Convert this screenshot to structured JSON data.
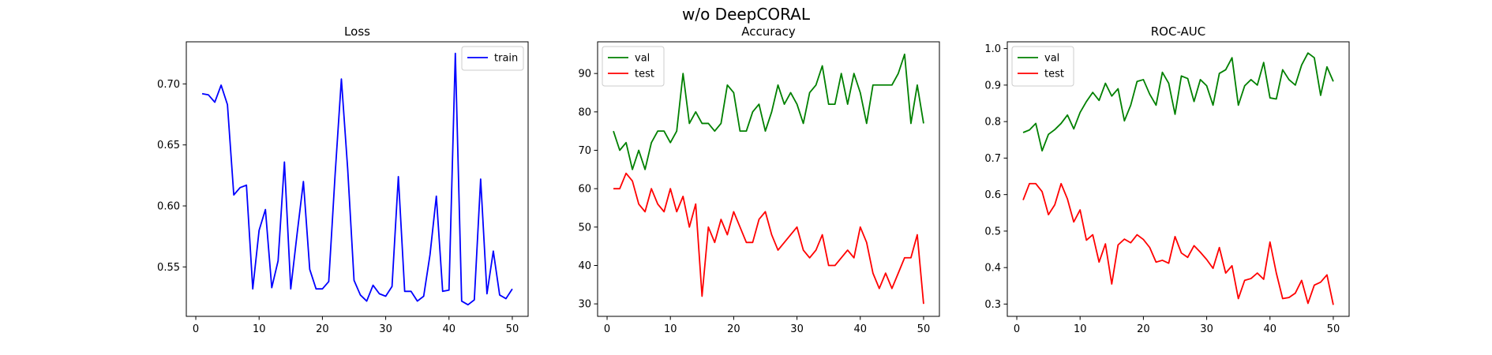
{
  "figure": {
    "suptitle": "w/o DeepCORAL"
  },
  "chart_data": [
    {
      "type": "line",
      "title": "Loss",
      "xlabel": "",
      "ylabel": "",
      "xlim": [
        -1.5,
        52.5
      ],
      "ylim": [
        0.5095,
        0.7345
      ],
      "xticks": [
        0,
        10,
        20,
        30,
        40,
        50
      ],
      "yticks": [
        0.55,
        0.6,
        0.65,
        0.7
      ],
      "ytick_labels": [
        "0.55",
        "0.60",
        "0.65",
        "0.70"
      ],
      "grid": false,
      "legend": "upper-right",
      "x": [
        1,
        2,
        3,
        4,
        5,
        6,
        7,
        8,
        9,
        10,
        11,
        12,
        13,
        14,
        15,
        16,
        17,
        18,
        19,
        20,
        21,
        22,
        23,
        24,
        25,
        26,
        27,
        28,
        29,
        30,
        31,
        32,
        33,
        34,
        35,
        36,
        37,
        38,
        39,
        40,
        41,
        42,
        43,
        44,
        45,
        46,
        47,
        48,
        49,
        50
      ],
      "series": [
        {
          "name": "train",
          "color": "#0000ff",
          "values": [
            0.692,
            0.691,
            0.685,
            0.699,
            0.683,
            0.609,
            0.615,
            0.617,
            0.532,
            0.58,
            0.597,
            0.533,
            0.555,
            0.636,
            0.532,
            0.577,
            0.62,
            0.548,
            0.532,
            0.532,
            0.538,
            0.625,
            0.704,
            0.63,
            0.539,
            0.527,
            0.522,
            0.535,
            0.528,
            0.526,
            0.534,
            0.624,
            0.53,
            0.53,
            0.522,
            0.526,
            0.56,
            0.608,
            0.53,
            0.531,
            0.725,
            0.522,
            0.519,
            0.523,
            0.622,
            0.528,
            0.563,
            0.527,
            0.524,
            0.532
          ]
        }
      ]
    },
    {
      "type": "line",
      "title": "Accuracy",
      "xlabel": "",
      "ylabel": "",
      "xlim": [
        -1.5,
        52.5
      ],
      "ylim": [
        26.75,
        98.25
      ],
      "xticks": [
        0,
        10,
        20,
        30,
        40,
        50
      ],
      "yticks": [
        30,
        40,
        50,
        60,
        70,
        80,
        90
      ],
      "ytick_labels": [
        "30",
        "40",
        "50",
        "60",
        "70",
        "80",
        "90"
      ],
      "grid": false,
      "legend": "upper-left",
      "x": [
        1,
        2,
        3,
        4,
        5,
        6,
        7,
        8,
        9,
        10,
        11,
        12,
        13,
        14,
        15,
        16,
        17,
        18,
        19,
        20,
        21,
        22,
        23,
        24,
        25,
        26,
        27,
        28,
        29,
        30,
        31,
        32,
        33,
        34,
        35,
        36,
        37,
        38,
        39,
        40,
        41,
        42,
        43,
        44,
        45,
        46,
        47,
        48,
        49,
        50
      ],
      "series": [
        {
          "name": "val",
          "color": "#008000",
          "values": [
            75,
            70,
            72,
            65,
            70,
            65,
            72,
            75,
            75,
            72,
            75,
            90,
            77,
            80,
            77,
            77,
            75,
            77,
            87,
            85,
            75,
            75,
            80,
            82,
            75,
            80,
            87,
            82,
            85,
            82,
            77,
            85,
            87,
            92,
            82,
            82,
            90,
            82,
            90,
            85,
            77,
            87,
            87,
            87,
            87,
            90,
            95,
            77,
            87,
            77
          ]
        },
        {
          "name": "test",
          "color": "#ff0000",
          "values": [
            60,
            60,
            64,
            62,
            56,
            54,
            60,
            56,
            54,
            60,
            54,
            58,
            50,
            56,
            32,
            50,
            46,
            52,
            48,
            54,
            50,
            46,
            46,
            52,
            54,
            48,
            44,
            46,
            48,
            50,
            44,
            42,
            44,
            48,
            40,
            40,
            42,
            44,
            42,
            50,
            46,
            38,
            34,
            38,
            34,
            38,
            42,
            42,
            48,
            30
          ]
        }
      ]
    },
    {
      "type": "line",
      "title": "ROC-AUC",
      "xlabel": "",
      "ylabel": "",
      "xlim": [
        -1.5,
        52.5
      ],
      "ylim": [
        0.2664,
        1.0186
      ],
      "xticks": [
        0,
        10,
        20,
        30,
        40,
        50
      ],
      "yticks": [
        0.3,
        0.4,
        0.5,
        0.6,
        0.7,
        0.8,
        0.9,
        1.0
      ],
      "ytick_labels": [
        "0.3",
        "0.4",
        "0.5",
        "0.6",
        "0.7",
        "0.8",
        "0.9",
        "1.0"
      ],
      "grid": false,
      "legend": "upper-left",
      "x": [
        1,
        2,
        3,
        4,
        5,
        6,
        7,
        8,
        9,
        10,
        11,
        12,
        13,
        14,
        15,
        16,
        17,
        18,
        19,
        20,
        21,
        22,
        23,
        24,
        25,
        26,
        27,
        28,
        29,
        30,
        31,
        32,
        33,
        34,
        35,
        36,
        37,
        38,
        39,
        40,
        41,
        42,
        43,
        44,
        45,
        46,
        47,
        48,
        49,
        50
      ],
      "series": [
        {
          "name": "val",
          "color": "#008000",
          "values": [
            0.77,
            0.777,
            0.795,
            0.72,
            0.765,
            0.778,
            0.795,
            0.818,
            0.78,
            0.825,
            0.855,
            0.88,
            0.858,
            0.905,
            0.87,
            0.89,
            0.802,
            0.845,
            0.91,
            0.915,
            0.875,
            0.845,
            0.935,
            0.905,
            0.82,
            0.925,
            0.918,
            0.855,
            0.915,
            0.898,
            0.845,
            0.932,
            0.942,
            0.975,
            0.845,
            0.898,
            0.915,
            0.9,
            0.962,
            0.865,
            0.862,
            0.942,
            0.915,
            0.9,
            0.955,
            0.988,
            0.975,
            0.872,
            0.95,
            0.91
          ]
        },
        {
          "name": "test",
          "color": "#ff0000",
          "values": [
            0.585,
            0.63,
            0.63,
            0.608,
            0.545,
            0.572,
            0.63,
            0.588,
            0.525,
            0.558,
            0.475,
            0.49,
            0.415,
            0.465,
            0.355,
            0.462,
            0.478,
            0.468,
            0.49,
            0.477,
            0.455,
            0.415,
            0.42,
            0.412,
            0.485,
            0.44,
            0.428,
            0.46,
            0.442,
            0.422,
            0.398,
            0.455,
            0.385,
            0.405,
            0.315,
            0.365,
            0.37,
            0.385,
            0.368,
            0.47,
            0.385,
            0.315,
            0.318,
            0.33,
            0.365,
            0.302,
            0.352,
            0.36,
            0.38,
            0.298
          ]
        }
      ]
    }
  ]
}
